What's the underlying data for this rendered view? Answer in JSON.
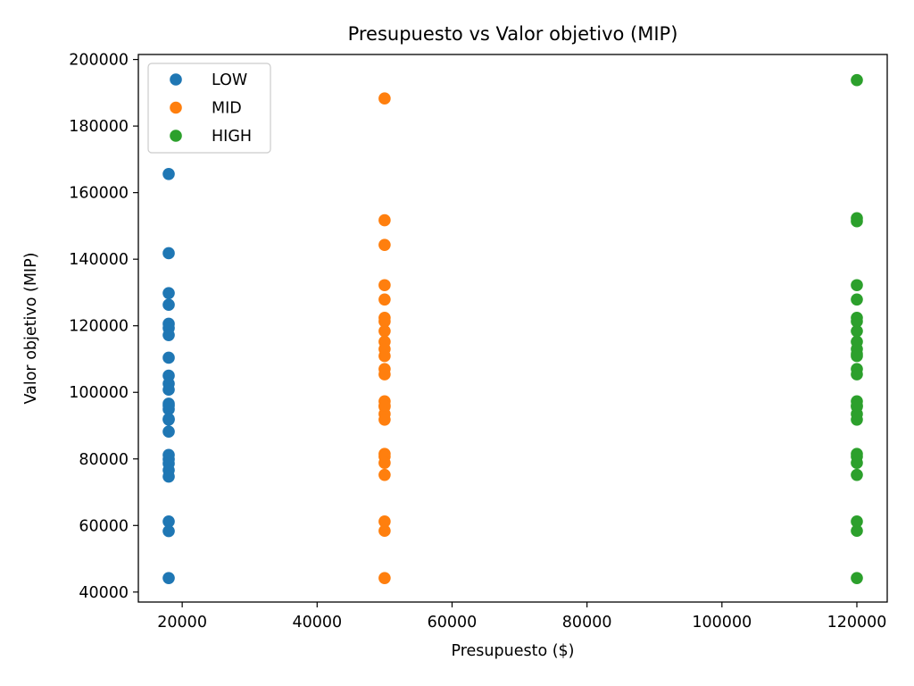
{
  "chart_data": {
    "type": "scatter",
    "title": "Presupuesto vs Valor objetivo (MIP)",
    "xlabel": "Presupuesto ($)",
    "ylabel": "Valor objetivo (MIP)",
    "xlim": [
      13500,
      124500
    ],
    "ylim": [
      37000,
      201500
    ],
    "xticks": [
      20000,
      40000,
      60000,
      80000,
      100000,
      120000
    ],
    "xtick_labels": [
      "20000",
      "40000",
      "60000",
      "80000",
      "100000",
      "120000"
    ],
    "yticks": [
      40000,
      60000,
      80000,
      100000,
      120000,
      140000,
      160000,
      180000,
      200000
    ],
    "ytick_labels": [
      "40000",
      "60000",
      "80000",
      "100000",
      "120000",
      "140000",
      "160000",
      "180000",
      "200000"
    ],
    "grid": false,
    "legend_position": "top-left",
    "series": [
      {
        "name": "LOW",
        "color": "#1f77b4",
        "x": [
          18000,
          18000,
          18000,
          18000,
          18000,
          18000,
          18000,
          18000,
          18000,
          18000,
          18000,
          18000,
          18000,
          18000,
          18000,
          18000,
          18000,
          18000,
          18000,
          18000,
          18000,
          18000,
          18000,
          18000,
          18000
        ],
        "y": [
          165600,
          141800,
          129800,
          126300,
          120600,
          119300,
          117200,
          110400,
          105000,
          102600,
          100800,
          96600,
          94900,
          91800,
          88200,
          81200,
          79900,
          78600,
          76600,
          74700,
          61200,
          58300,
          44200,
          92000,
          96000
        ]
      },
      {
        "name": "MID",
        "color": "#ff7f0e",
        "x": [
          50000,
          50000,
          50000,
          50000,
          50000,
          50000,
          50000,
          50000,
          50000,
          50000,
          50000,
          50000,
          50000,
          50000,
          50000,
          50000,
          50000,
          50000,
          50000,
          50000,
          50000,
          50000,
          50000,
          50000,
          50000
        ],
        "y": [
          188300,
          151700,
          144300,
          132200,
          127900,
          122400,
          121300,
          118400,
          115200,
          113000,
          110900,
          107000,
          105400,
          97300,
          95700,
          93500,
          91800,
          81500,
          80700,
          78800,
          75200,
          61200,
          58400,
          44200,
          96000
        ]
      },
      {
        "name": "HIGH",
        "color": "#2ca02c",
        "x": [
          120000,
          120000,
          120000,
          120000,
          120000,
          120000,
          120000,
          120000,
          120000,
          120000,
          120000,
          120000,
          120000,
          120000,
          120000,
          120000,
          120000,
          120000,
          120000,
          120000,
          120000,
          120000,
          120000,
          120000,
          120000,
          120000
        ],
        "y": [
          193800,
          152300,
          151400,
          132200,
          127900,
          122400,
          121300,
          118400,
          115200,
          113000,
          110900,
          107000,
          105400,
          97300,
          95700,
          93500,
          91800,
          81500,
          80700,
          78800,
          75200,
          61200,
          58400,
          44200,
          96000,
          111500
        ]
      }
    ]
  }
}
